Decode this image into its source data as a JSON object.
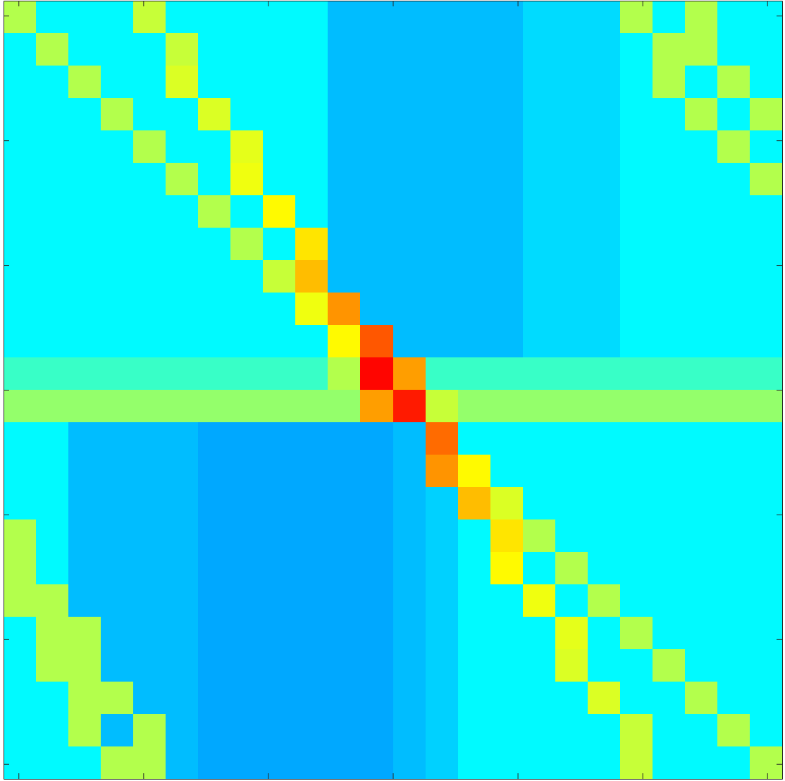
{
  "chart_data": {
    "type": "heatmap",
    "x": [
      -2.99,
      -2.73,
      -2.47,
      -2.21,
      -1.95,
      -1.69,
      -1.43,
      -1.17,
      -0.91,
      -0.65,
      -0.39,
      -0.13,
      0.13,
      0.39,
      0.65,
      0.91,
      1.17,
      1.43,
      1.69,
      1.95,
      2.21,
      2.47,
      2.73,
      2.99
    ],
    "y": [
      2.99,
      2.73,
      2.47,
      2.21,
      1.95,
      1.69,
      1.43,
      1.17,
      0.91,
      0.65,
      0.39,
      0.13,
      -0.13,
      -0.39,
      -0.65,
      -0.91,
      -1.17,
      -1.43,
      -1.69,
      -1.95,
      -2.21,
      -2.47,
      -2.73,
      -2.99
    ],
    "z": [
      [
        58,
        40,
        40,
        40,
        60,
        40,
        40,
        40,
        40,
        40,
        34,
        34,
        34,
        34,
        34,
        34,
        37,
        37,
        37,
        58,
        40,
        58,
        40,
        40
      ],
      [
        40,
        58,
        40,
        40,
        40,
        60,
        40,
        40,
        40,
        40,
        34,
        34,
        34,
        34,
        34,
        34,
        37,
        37,
        37,
        40,
        58,
        58,
        40,
        40
      ],
      [
        40,
        40,
        58,
        40,
        40,
        62,
        40,
        40,
        40,
        40,
        34,
        34,
        34,
        34,
        34,
        34,
        37,
        37,
        37,
        40,
        58,
        40,
        58,
        40
      ],
      [
        40,
        40,
        40,
        58,
        40,
        40,
        62,
        40,
        40,
        40,
        34,
        34,
        34,
        34,
        34,
        34,
        37,
        37,
        37,
        40,
        40,
        58,
        40,
        58
      ],
      [
        40,
        40,
        40,
        40,
        58,
        40,
        40,
        63,
        40,
        40,
        34,
        34,
        34,
        34,
        34,
        34,
        37,
        37,
        37,
        40,
        40,
        40,
        58,
        40
      ],
      [
        40,
        40,
        40,
        40,
        40,
        58,
        40,
        64,
        40,
        40,
        34,
        34,
        34,
        34,
        34,
        34,
        37,
        37,
        37,
        40,
        40,
        40,
        40,
        58
      ],
      [
        40,
        40,
        40,
        40,
        40,
        40,
        58,
        40,
        66,
        40,
        34,
        34,
        34,
        34,
        34,
        34,
        37,
        37,
        37,
        40,
        40,
        40,
        40,
        40
      ],
      [
        40,
        40,
        40,
        40,
        40,
        40,
        40,
        58,
        40,
        68,
        34,
        34,
        34,
        34,
        34,
        34,
        37,
        37,
        37,
        40,
        40,
        40,
        40,
        40
      ],
      [
        40,
        40,
        40,
        40,
        40,
        40,
        40,
        40,
        60,
        72,
        34,
        34,
        34,
        34,
        34,
        34,
        37,
        37,
        37,
        40,
        40,
        40,
        40,
        40
      ],
      [
        40,
        40,
        40,
        40,
        40,
        40,
        40,
        40,
        40,
        64,
        76,
        34,
        34,
        34,
        34,
        34,
        37,
        37,
        37,
        40,
        40,
        40,
        40,
        40
      ],
      [
        40,
        40,
        40,
        40,
        40,
        40,
        40,
        40,
        40,
        40,
        66,
        82,
        34,
        34,
        34,
        34,
        37,
        37,
        37,
        40,
        40,
        40,
        40,
        40
      ],
      [
        46,
        46,
        46,
        46,
        46,
        46,
        46,
        46,
        46,
        46,
        58,
        90,
        75,
        46,
        46,
        46,
        46,
        46,
        46,
        46,
        46,
        46,
        46,
        46
      ],
      [
        55,
        55,
        55,
        55,
        55,
        55,
        55,
        55,
        55,
        55,
        55,
        75,
        88,
        60,
        55,
        55,
        55,
        55,
        55,
        55,
        55,
        55,
        55,
        55
      ],
      [
        40,
        40,
        34,
        34,
        34,
        34,
        32,
        32,
        32,
        32,
        32,
        32,
        34,
        80,
        40,
        40,
        40,
        40,
        40,
        40,
        40,
        40,
        40,
        40
      ],
      [
        40,
        40,
        34,
        34,
        34,
        34,
        32,
        32,
        32,
        32,
        32,
        32,
        34,
        76,
        66,
        40,
        40,
        40,
        40,
        40,
        40,
        40,
        40,
        40
      ],
      [
        40,
        40,
        34,
        34,
        34,
        34,
        32,
        32,
        32,
        32,
        32,
        32,
        34,
        36,
        72,
        62,
        40,
        40,
        40,
        40,
        40,
        40,
        40,
        40
      ],
      [
        58,
        40,
        34,
        34,
        34,
        34,
        32,
        32,
        32,
        32,
        32,
        32,
        34,
        36,
        40,
        68,
        58,
        40,
        40,
        40,
        40,
        40,
        40,
        40
      ],
      [
        58,
        40,
        34,
        34,
        34,
        34,
        32,
        32,
        32,
        32,
        32,
        32,
        34,
        36,
        40,
        66,
        40,
        58,
        40,
        40,
        40,
        40,
        40,
        40
      ],
      [
        58,
        58,
        34,
        34,
        34,
        34,
        32,
        32,
        32,
        32,
        32,
        32,
        34,
        36,
        40,
        40,
        64,
        40,
        58,
        40,
        40,
        40,
        40,
        40
      ],
      [
        40,
        58,
        58,
        34,
        34,
        34,
        32,
        32,
        32,
        32,
        32,
        32,
        34,
        36,
        40,
        40,
        40,
        63,
        40,
        58,
        40,
        40,
        40,
        40
      ],
      [
        40,
        58,
        58,
        34,
        34,
        34,
        32,
        32,
        32,
        32,
        32,
        32,
        34,
        36,
        40,
        40,
        40,
        62,
        40,
        40,
        58,
        40,
        40,
        40
      ],
      [
        40,
        40,
        58,
        58,
        34,
        34,
        32,
        32,
        32,
        32,
        32,
        32,
        34,
        36,
        40,
        40,
        40,
        40,
        62,
        40,
        40,
        58,
        40,
        40
      ],
      [
        40,
        40,
        58,
        34,
        58,
        34,
        32,
        32,
        32,
        32,
        32,
        32,
        34,
        36,
        40,
        40,
        40,
        40,
        40,
        60,
        40,
        40,
        58,
        40
      ],
      [
        40,
        40,
        40,
        58,
        58,
        34,
        32,
        32,
        32,
        32,
        32,
        32,
        34,
        36,
        40,
        40,
        40,
        40,
        40,
        60,
        40,
        40,
        40,
        58
      ]
    ],
    "zlim": [
      3,
      103
    ],
    "xlim": [
      -3.12,
      3.12
    ],
    "ylim": [
      -3.12,
      3.12
    ],
    "xticks": [
      -3,
      -2,
      -1,
      0,
      1,
      2,
      3
    ],
    "yticks": [
      -3,
      -2,
      -1,
      0,
      1,
      2,
      3
    ],
    "tick_labels": false
  }
}
